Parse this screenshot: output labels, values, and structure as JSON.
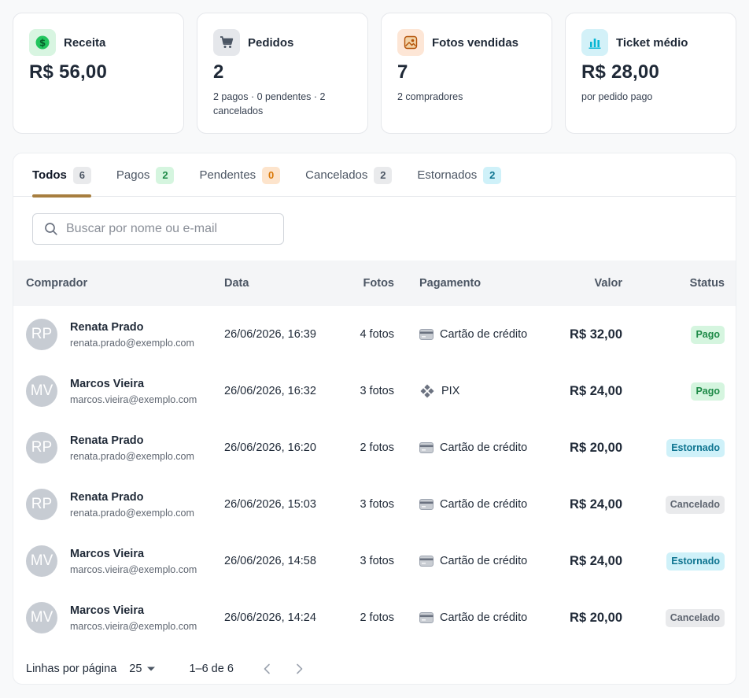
{
  "cards": [
    {
      "title": "Receita",
      "value": "R$ 56,00",
      "sub": "",
      "icon": "dollar-icon",
      "color": "#16a34a"
    },
    {
      "title": "Pedidos",
      "value": "2",
      "sub": "2 pagos · 0 pendentes · 2 cancelados",
      "icon": "cart-icon",
      "color": "#4b5563"
    },
    {
      "title": "Fotos vendidas",
      "value": "7",
      "sub": "2 compradores",
      "icon": "photo-icon",
      "color": "#c2410c"
    },
    {
      "title": "Ticket médio",
      "value": "R$ 28,00",
      "sub": "por pedido pago",
      "icon": "bar-chart-icon",
      "color": "#0891b2"
    }
  ],
  "tabs": [
    {
      "label": "Todos",
      "count": "6",
      "style": "gray",
      "active": true
    },
    {
      "label": "Pagos",
      "count": "2",
      "style": "green",
      "active": false
    },
    {
      "label": "Pendentes",
      "count": "0",
      "style": "orange",
      "active": false
    },
    {
      "label": "Cancelados",
      "count": "2",
      "style": "gray",
      "active": false
    },
    {
      "label": "Estornados",
      "count": "2",
      "style": "cyan",
      "active": false
    }
  ],
  "search": {
    "placeholder": "Buscar por nome ou e-mail",
    "value": ""
  },
  "table": {
    "headers": {
      "buyer": "Comprador",
      "date": "Data",
      "photos": "Fotos",
      "payment": "Pagamento",
      "value": "Valor",
      "status": "Status"
    },
    "rows": [
      {
        "initials": "RP",
        "name": "Renata Prado",
        "email": "renata.prado@exemplo.com",
        "date": "26/06/2026, 16:39",
        "photos": "4 fotos",
        "payment": "Cartão de crédito",
        "payment_icon": "credit-card-icon",
        "value": "R$ 32,00",
        "status": "Pago",
        "status_style": "pago"
      },
      {
        "initials": "MV",
        "name": "Marcos Vieira",
        "email": "marcos.vieira@exemplo.com",
        "date": "26/06/2026, 16:32",
        "photos": "3 fotos",
        "payment": "PIX",
        "payment_icon": "pix-icon",
        "value": "R$ 24,00",
        "status": "Pago",
        "status_style": "pago"
      },
      {
        "initials": "RP",
        "name": "Renata Prado",
        "email": "renata.prado@exemplo.com",
        "date": "26/06/2026, 16:20",
        "photos": "2 fotos",
        "payment": "Cartão de crédito",
        "payment_icon": "credit-card-icon",
        "value": "R$ 20,00",
        "status": "Estornado",
        "status_style": "estornado"
      },
      {
        "initials": "RP",
        "name": "Renata Prado",
        "email": "renata.prado@exemplo.com",
        "date": "26/06/2026, 15:03",
        "photos": "3 fotos",
        "payment": "Cartão de crédito",
        "payment_icon": "credit-card-icon",
        "value": "R$ 24,00",
        "status": "Cancelado",
        "status_style": "cancelado"
      },
      {
        "initials": "MV",
        "name": "Marcos Vieira",
        "email": "marcos.vieira@exemplo.com",
        "date": "26/06/2026, 14:58",
        "photos": "3 fotos",
        "payment": "Cartão de crédito",
        "payment_icon": "credit-card-icon",
        "value": "R$ 24,00",
        "status": "Estornado",
        "status_style": "estornado"
      },
      {
        "initials": "MV",
        "name": "Marcos Vieira",
        "email": "marcos.vieira@exemplo.com",
        "date": "26/06/2026, 14:24",
        "photos": "2 fotos",
        "payment": "Cartão de crédito",
        "payment_icon": "credit-card-icon",
        "value": "R$ 20,00",
        "status": "Cancelado",
        "status_style": "cancelado"
      }
    ]
  },
  "pagination": {
    "rows_per_page_label": "Linhas por página",
    "rows_per_page": "25",
    "range": "1–6 de 6"
  },
  "colors": {
    "accent": "#a77e3f"
  }
}
